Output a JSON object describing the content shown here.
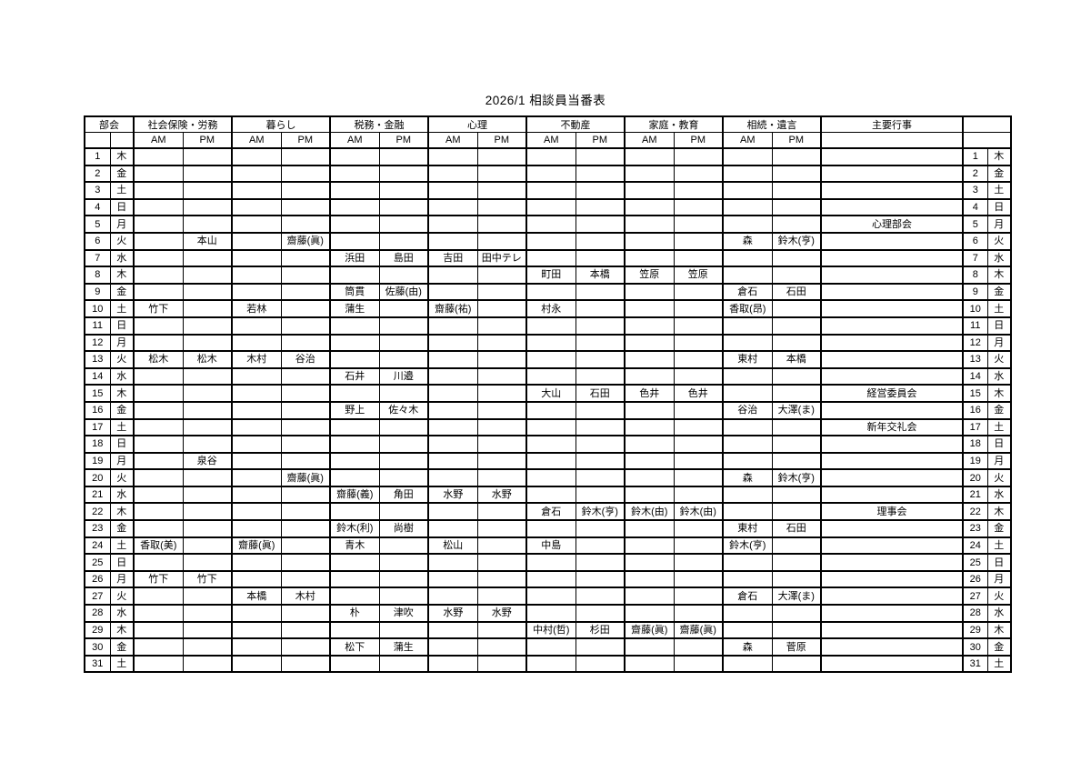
{
  "title": "2026/1 相談員当番表",
  "table": {
    "corner_label": "部会",
    "am_label": "AM",
    "pm_label": "PM",
    "events_label": "主要行事",
    "categories": [
      {
        "label": "社会保険・労務"
      },
      {
        "label": "暮らし"
      },
      {
        "label": "税務・金融"
      },
      {
        "label": "心理"
      },
      {
        "label": "不動産"
      },
      {
        "label": "家庭・教育"
      },
      {
        "label": "相続・遺言"
      }
    ],
    "rows": [
      {
        "day": 1,
        "dow": "木",
        "cells": [
          "",
          "",
          "",
          "",
          "",
          "",
          "",
          "",
          "",
          "",
          "",
          "",
          "",
          ""
        ],
        "event": ""
      },
      {
        "day": 2,
        "dow": "金",
        "cells": [
          "",
          "",
          "",
          "",
          "",
          "",
          "",
          "",
          "",
          "",
          "",
          "",
          "",
          ""
        ],
        "event": ""
      },
      {
        "day": 3,
        "dow": "土",
        "cells": [
          "",
          "",
          "",
          "",
          "",
          "",
          "",
          "",
          "",
          "",
          "",
          "",
          "",
          ""
        ],
        "event": ""
      },
      {
        "day": 4,
        "dow": "日",
        "cells": [
          "",
          "",
          "",
          "",
          "",
          "",
          "",
          "",
          "",
          "",
          "",
          "",
          "",
          ""
        ],
        "event": ""
      },
      {
        "day": 5,
        "dow": "月",
        "cells": [
          "",
          "",
          "",
          "",
          "",
          "",
          "",
          "",
          "",
          "",
          "",
          "",
          "",
          ""
        ],
        "event": "心理部会"
      },
      {
        "day": 6,
        "dow": "火",
        "cells": [
          "",
          "本山",
          "",
          "齋藤(眞)",
          "",
          "",
          "",
          "",
          "",
          "",
          "",
          "",
          "森",
          "鈴木(亨)"
        ],
        "event": ""
      },
      {
        "day": 7,
        "dow": "水",
        "cells": [
          "",
          "",
          "",
          "",
          "浜田",
          "島田",
          "吉田",
          "田中テレ",
          "",
          "",
          "",
          "",
          "",
          ""
        ],
        "event": ""
      },
      {
        "day": 8,
        "dow": "木",
        "cells": [
          "",
          "",
          "",
          "",
          "",
          "",
          "",
          "",
          "町田",
          "本橋",
          "笠原",
          "笠原",
          "",
          ""
        ],
        "event": ""
      },
      {
        "day": 9,
        "dow": "金",
        "cells": [
          "",
          "",
          "",
          "",
          "筒貫",
          "佐藤(由)",
          "",
          "",
          "",
          "",
          "",
          "",
          "倉石",
          "石田"
        ],
        "event": ""
      },
      {
        "day": 10,
        "dow": "土",
        "cells": [
          "竹下",
          "",
          "若林",
          "",
          "蒲生",
          "",
          "齋藤(祐)",
          "",
          "村永",
          "",
          "",
          "",
          "香取(昂)",
          ""
        ],
        "event": ""
      },
      {
        "day": 11,
        "dow": "日",
        "cells": [
          "",
          "",
          "",
          "",
          "",
          "",
          "",
          "",
          "",
          "",
          "",
          "",
          "",
          ""
        ],
        "event": ""
      },
      {
        "day": 12,
        "dow": "月",
        "cells": [
          "",
          "",
          "",
          "",
          "",
          "",
          "",
          "",
          "",
          "",
          "",
          "",
          "",
          ""
        ],
        "event": ""
      },
      {
        "day": 13,
        "dow": "火",
        "cells": [
          "松木",
          "松木",
          "木村",
          "谷治",
          "",
          "",
          "",
          "",
          "",
          "",
          "",
          "",
          "東村",
          "本橋"
        ],
        "event": ""
      },
      {
        "day": 14,
        "dow": "水",
        "cells": [
          "",
          "",
          "",
          "",
          "石井",
          "川邉",
          "",
          "",
          "",
          "",
          "",
          "",
          "",
          ""
        ],
        "event": ""
      },
      {
        "day": 15,
        "dow": "木",
        "cells": [
          "",
          "",
          "",
          "",
          "",
          "",
          "",
          "",
          "大山",
          "石田",
          "色井",
          "色井",
          "",
          ""
        ],
        "event": "経営委員会"
      },
      {
        "day": 16,
        "dow": "金",
        "cells": [
          "",
          "",
          "",
          "",
          "野上",
          "佐々木",
          "",
          "",
          "",
          "",
          "",
          "",
          "谷治",
          "大澤(ま)"
        ],
        "event": ""
      },
      {
        "day": 17,
        "dow": "土",
        "cells": [
          "",
          "",
          "",
          "",
          "",
          "",
          "",
          "",
          "",
          "",
          "",
          "",
          "",
          ""
        ],
        "event": "新年交礼会"
      },
      {
        "day": 18,
        "dow": "日",
        "cells": [
          "",
          "",
          "",
          "",
          "",
          "",
          "",
          "",
          "",
          "",
          "",
          "",
          "",
          ""
        ],
        "event": ""
      },
      {
        "day": 19,
        "dow": "月",
        "cells": [
          "",
          "泉谷",
          "",
          "",
          "",
          "",
          "",
          "",
          "",
          "",
          "",
          "",
          "",
          ""
        ],
        "event": ""
      },
      {
        "day": 20,
        "dow": "火",
        "cells": [
          "",
          "",
          "",
          "齋藤(眞)",
          "",
          "",
          "",
          "",
          "",
          "",
          "",
          "",
          "森",
          "鈴木(亨)"
        ],
        "event": ""
      },
      {
        "day": 21,
        "dow": "水",
        "cells": [
          "",
          "",
          "",
          "",
          "齋藤(義)",
          "角田",
          "水野",
          "水野",
          "",
          "",
          "",
          "",
          "",
          ""
        ],
        "event": ""
      },
      {
        "day": 22,
        "dow": "木",
        "cells": [
          "",
          "",
          "",
          "",
          "",
          "",
          "",
          "",
          "倉石",
          "鈴木(亨)",
          "鈴木(由)",
          "鈴木(由)",
          "",
          ""
        ],
        "event": "理事会"
      },
      {
        "day": 23,
        "dow": "金",
        "cells": [
          "",
          "",
          "",
          "",
          "鈴木(利)",
          "尚樹",
          "",
          "",
          "",
          "",
          "",
          "",
          "東村",
          "石田"
        ],
        "event": ""
      },
      {
        "day": 24,
        "dow": "土",
        "cells": [
          "香取(美)",
          "",
          "齋藤(眞)",
          "",
          "青木",
          "",
          "松山",
          "",
          "中島",
          "",
          "",
          "",
          "鈴木(亨)",
          ""
        ],
        "event": ""
      },
      {
        "day": 25,
        "dow": "日",
        "cells": [
          "",
          "",
          "",
          "",
          "",
          "",
          "",
          "",
          "",
          "",
          "",
          "",
          "",
          ""
        ],
        "event": ""
      },
      {
        "day": 26,
        "dow": "月",
        "cells": [
          "竹下",
          "竹下",
          "",
          "",
          "",
          "",
          "",
          "",
          "",
          "",
          "",
          "",
          "",
          ""
        ],
        "event": ""
      },
      {
        "day": 27,
        "dow": "火",
        "cells": [
          "",
          "",
          "本橋",
          "木村",
          "",
          "",
          "",
          "",
          "",
          "",
          "",
          "",
          "倉石",
          "大澤(ま)"
        ],
        "event": ""
      },
      {
        "day": 28,
        "dow": "水",
        "cells": [
          "",
          "",
          "",
          "",
          "朴",
          "津吹",
          "水野",
          "水野",
          "",
          "",
          "",
          "",
          "",
          ""
        ],
        "event": ""
      },
      {
        "day": 29,
        "dow": "木",
        "cells": [
          "",
          "",
          "",
          "",
          "",
          "",
          "",
          "",
          "中村(哲)",
          "杉田",
          "齋藤(眞)",
          "齋藤(眞)",
          "",
          ""
        ],
        "event": ""
      },
      {
        "day": 30,
        "dow": "金",
        "cells": [
          "",
          "",
          "",
          "",
          "松下",
          "蒲生",
          "",
          "",
          "",
          "",
          "",
          "",
          "森",
          "菅原"
        ],
        "event": ""
      },
      {
        "day": 31,
        "dow": "土",
        "cells": [
          "",
          "",
          "",
          "",
          "",
          "",
          "",
          "",
          "",
          "",
          "",
          "",
          "",
          ""
        ],
        "event": ""
      }
    ]
  }
}
